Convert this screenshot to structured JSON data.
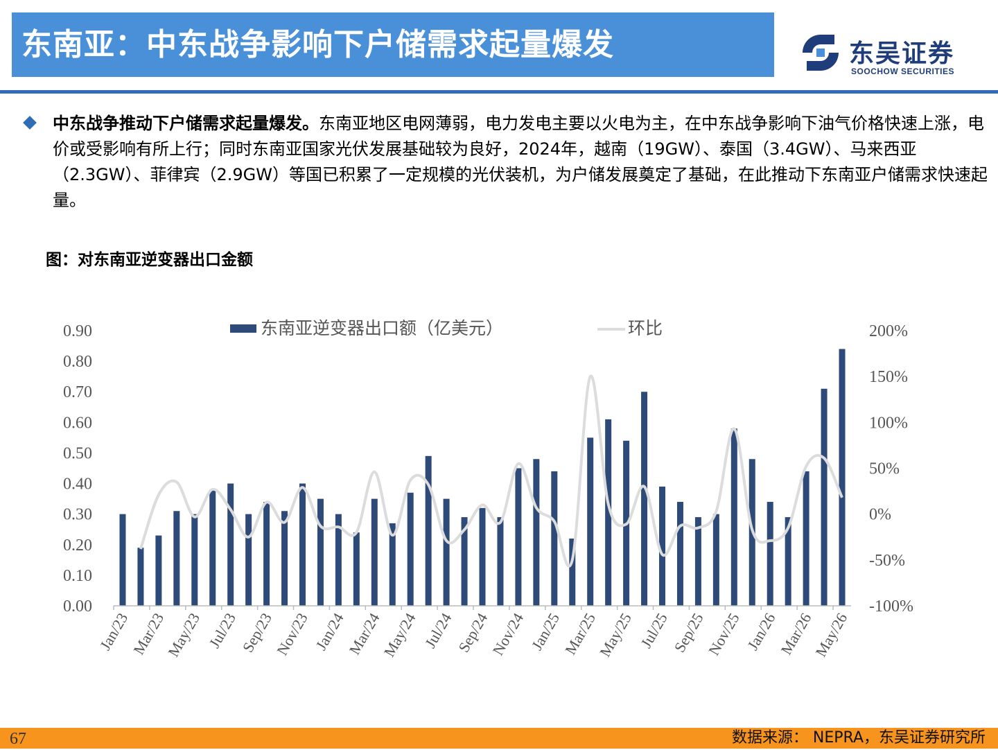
{
  "header": {
    "title": "东南亚：中东战争影响下户储需求起量爆发",
    "logo_cn": "东吴证券",
    "logo_en": "SOOCHOW SECURITIES"
  },
  "body": {
    "lead_bold": "中东战争推动下户储需求起量爆发。",
    "text": "东南亚地区电网薄弱，电力发电主要以火电为主，在中东战争影响下油气价格快速上涨，电价或受影响有所上行；同时东南亚国家光伏发展基础较为良好，2024年，越南（19GW）、泰国（3.4GW）、马来西亚（2.3GW）、菲律宾（2.9GW）等国已积累了一定规模的光伏装机，为户储发展奠定了基础，在此推动下东南亚户储需求快速起量。"
  },
  "figure_title": "图：对东南亚逆变器出口金额",
  "chart_data": {
    "type": "bar",
    "x": [
      "Jan/23",
      "Feb/23",
      "Mar/23",
      "Apr/23",
      "May/23",
      "Jun/23",
      "Jul/23",
      "Aug/23",
      "Sep/23",
      "Oct/23",
      "Nov/23",
      "Dec/23",
      "Jan/24",
      "Feb/24",
      "Mar/24",
      "Apr/24",
      "May/24",
      "Jun/24",
      "Jul/24",
      "Aug/24",
      "Sep/24",
      "Oct/24",
      "Nov/24",
      "Dec/24",
      "Jan/25",
      "Feb/25",
      "Mar/25",
      "Apr/25",
      "May/25",
      "Jun/25",
      "Jul/25",
      "Aug/25",
      "Sep/25",
      "Oct/25",
      "Nov/25",
      "Dec/25",
      "Jan/26",
      "Feb/26",
      "Mar/26",
      "Apr/26",
      "May/26"
    ],
    "tick_labels": [
      "Jan/23",
      "Mar/23",
      "May/23",
      "Jul/23",
      "Sep/23",
      "Nov/23",
      "Jan/24",
      "Mar/24",
      "May/24",
      "Jul/24",
      "Sep/24",
      "Nov/24",
      "Jan/25",
      "Mar/25",
      "May/25",
      "Jul/25",
      "Sep/25",
      "Nov/25",
      "Jan/26",
      "Mar/26",
      "May/26"
    ],
    "series": [
      {
        "name": "东南亚逆变器出口额（亿美元）",
        "axis": "left",
        "kind": "bar",
        "color": "#2e4a78",
        "values": [
          0.3,
          0.19,
          0.23,
          0.31,
          0.3,
          0.38,
          0.4,
          0.3,
          0.34,
          0.31,
          0.4,
          0.35,
          0.3,
          0.24,
          0.35,
          0.27,
          0.37,
          0.49,
          0.35,
          0.29,
          0.32,
          0.29,
          0.45,
          0.48,
          0.44,
          0.22,
          0.55,
          0.61,
          0.54,
          0.7,
          0.39,
          0.34,
          0.29,
          0.3,
          0.58,
          0.48,
          0.34,
          0.29,
          0.44,
          0.71,
          0.84
        ]
      },
      {
        "name": "环比",
        "axis": "right",
        "kind": "line",
        "color": "#dcdcdc",
        "values": [
          null,
          -38,
          21,
          35,
          -3,
          27,
          5,
          -25,
          13,
          -9,
          29,
          -13,
          -14,
          -20,
          46,
          -23,
          37,
          32,
          -29,
          -17,
          10,
          -9,
          55,
          7,
          -8,
          -50,
          150,
          11,
          -11,
          30,
          -44,
          -13,
          -15,
          3,
          93,
          -17,
          -29,
          -15,
          52,
          61,
          18
        ]
      }
    ],
    "y_left": {
      "min": 0,
      "max": 0.9,
      "ticks": [
        "0.00",
        "0.10",
        "0.20",
        "0.30",
        "0.40",
        "0.50",
        "0.60",
        "0.70",
        "0.80",
        "0.90"
      ]
    },
    "y_right": {
      "min": -100,
      "max": 200,
      "ticks": [
        "-100%",
        "-50%",
        "0%",
        "50%",
        "100%",
        "150%",
        "200%"
      ]
    },
    "grid": false,
    "legend_position": "top-center"
  },
  "footer": {
    "page": "67",
    "source": "数据来源： NEPRA，东吴证券研究所"
  }
}
